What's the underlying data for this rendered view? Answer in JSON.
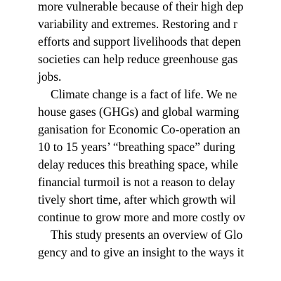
{
  "document": {
    "lines": [
      {
        "text": "more vulnerable because of their high dep",
        "indent": false
      },
      {
        "text": "variability and extremes. Restoring and r",
        "indent": false
      },
      {
        "text": "efforts and support livelihoods that depen",
        "indent": false
      },
      {
        "text": "societies can help reduce greenhouse gas",
        "indent": false
      },
      {
        "text": "jobs.",
        "indent": false
      },
      {
        "text": "Climate change is a fact of life. We ne",
        "indent": true
      },
      {
        "text": "house gases (GHGs) and global warming",
        "indent": false
      },
      {
        "text": "ganisation for Economic Co-operation an",
        "indent": false
      },
      {
        "text": "10 to 15 years’ “breathing space” during",
        "indent": false
      },
      {
        "text": "delay reduces this breathing space, while",
        "indent": false
      },
      {
        "text": "financial turmoil is not a reason to delay",
        "indent": false
      },
      {
        "text": "tively short time, after which growth wil",
        "indent": false
      },
      {
        "text": "continue to grow more and more costly ov",
        "indent": false
      },
      {
        "text": "This study presents an overview of Glo",
        "indent": true
      },
      {
        "text": "gency and to give an insight to the ways it",
        "indent": false
      }
    ]
  }
}
